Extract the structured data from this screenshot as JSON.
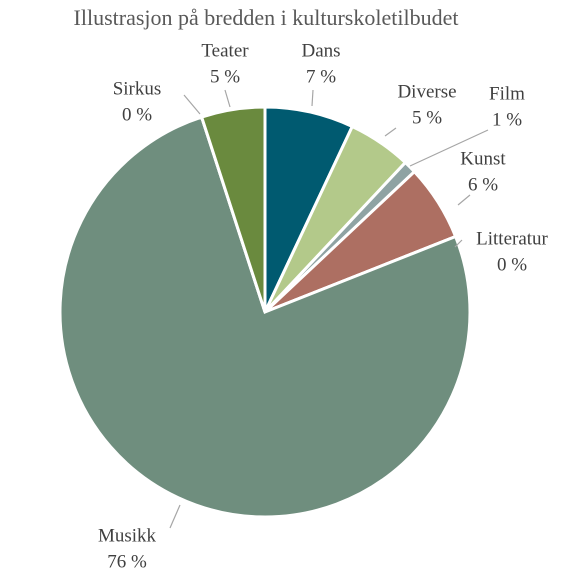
{
  "chart_data": {
    "type": "pie",
    "title": "Illustrasjon på bredden i kulturskoletilbudet",
    "categories": [
      "Dans",
      "Diverse",
      "Film",
      "Kunst",
      "Litteratur",
      "Musikk",
      "Sirkus",
      "Teater"
    ],
    "values": [
      7,
      5,
      1,
      6,
      0,
      76,
      0,
      5
    ],
    "value_labels": [
      "7 %",
      "5 %",
      "1 %",
      "6 %",
      "0 %",
      "76 %",
      "0 %",
      "5 %"
    ],
    "colors": [
      "#005a70",
      "#b3c98a",
      "#8fa3a3",
      "#ad6f62",
      "#c9a46e",
      "#6f8e7e",
      "#8b8b6a",
      "#6a8a3e"
    ]
  }
}
